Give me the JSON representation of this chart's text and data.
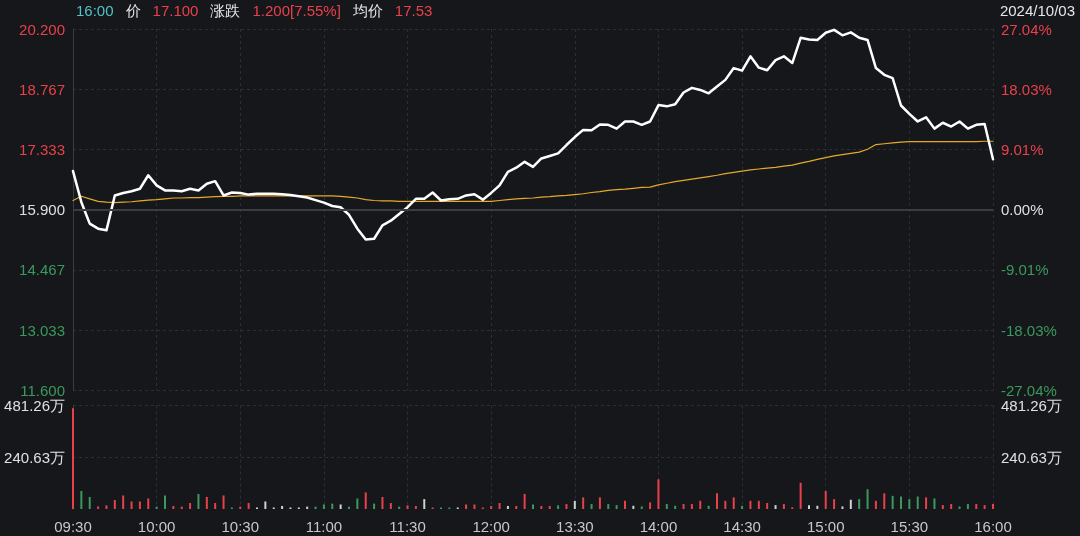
{
  "chart_data": [
    {
      "type": "line",
      "subtitle": "2024/10/03",
      "annotations": [
        "16:00",
        "价",
        "17.100",
        "涨跌",
        "1.200[7.55%]",
        "均价",
        "17.53"
      ],
      "categories": [
        null,
        null,
        null,
        null,
        null,
        null,
        null,
        null,
        null,
        null,
        null,
        null,
        null,
        null,
        null,
        null,
        null,
        null,
        null,
        null,
        null,
        null,
        null,
        null,
        null,
        null,
        null,
        null,
        null,
        null,
        null,
        null,
        null,
        null,
        null,
        null,
        null,
        null,
        null,
        null,
        null,
        null,
        null,
        null,
        null,
        null,
        null,
        null,
        null,
        null,
        null,
        null,
        null,
        null,
        null,
        null,
        null,
        null,
        null,
        null,
        null,
        null,
        null,
        null,
        null,
        null,
        null,
        null,
        null,
        null,
        null,
        null,
        null,
        null,
        null,
        null,
        null,
        null,
        null,
        null,
        null,
        null,
        null,
        null,
        null,
        null,
        null,
        null,
        null,
        null,
        null,
        null,
        null,
        null,
        null,
        null,
        null,
        null,
        null,
        null,
        null,
        null,
        null,
        null,
        null,
        null,
        null,
        null,
        null,
        null,
        null
      ],
      "ylim": [
        11.6,
        20.2
      ],
      "yticks": [
        {
          "value": 11.6,
          "label": "11.600"
        },
        {
          "value": 13.033,
          "label": "13.033"
        },
        {
          "value": 14.467,
          "label": "14.467"
        },
        {
          "value": 15.9,
          "label": "15.900"
        },
        {
          "value": 17.333,
          "label": "17.333"
        },
        {
          "value": 18.767,
          "label": "18.767"
        },
        {
          "value": 20.2,
          "label": "20.200"
        }
      ],
      "y2lim": [
        -27.04,
        27.04
      ],
      "y2ticks": [
        {
          "value": -27.04,
          "label": "-27.04%"
        },
        {
          "value": -18.03,
          "label": "-18.03%"
        },
        {
          "value": -9.01,
          "label": "-9.01%"
        },
        {
          "value": 0,
          "label": "0.00%"
        },
        {
          "value": 9.01,
          "label": "9.01%"
        },
        {
          "value": 18.03,
          "label": "18.03%"
        },
        {
          "value": 27.04,
          "label": "27.04%"
        }
      ],
      "ref_lines": [
        {
          "axis": "y",
          "value": 15.9,
          "color": "#3a3c42"
        }
      ],
      "grid": true,
      "tick_labels": "y",
      "marker": "none",
      "line_style": "solid",
      "series": [
        {
          "color": "#ffffff",
          "values": [
            16.82,
            16.08,
            15.57,
            15.45,
            15.41,
            16.24,
            16.3,
            16.34,
            16.4,
            16.72,
            16.48,
            16.36,
            16.36,
            16.34,
            16.4,
            16.36,
            16.52,
            16.58,
            16.24,
            16.31,
            16.3,
            16.26,
            16.28,
            16.28,
            16.28,
            16.27,
            16.25,
            16.22,
            16.19,
            16.13,
            16.07,
            15.99,
            15.96,
            15.78,
            15.45,
            15.19,
            15.21,
            15.53,
            15.64,
            15.8,
            15.96,
            16.16,
            16.16,
            16.31,
            16.12,
            16.15,
            16.16,
            16.24,
            16.27,
            16.14,
            16.3,
            16.48,
            16.8,
            16.9,
            17.04,
            16.92,
            17.12,
            17.18,
            17.24,
            17.44,
            17.63,
            17.8,
            17.79,
            17.93,
            17.92,
            17.83,
            18.0,
            18.0,
            17.92,
            18.0,
            18.39,
            18.36,
            18.41,
            18.69,
            18.8,
            18.75,
            18.67,
            18.83,
            18.99,
            19.27,
            19.21,
            19.55,
            19.28,
            19.22,
            19.46,
            19.55,
            19.39,
            19.99,
            19.95,
            19.94,
            20.11,
            20.18,
            20.05,
            20.12,
            19.99,
            19.94,
            19.27,
            19.11,
            19.03,
            18.38,
            18.18,
            18.0,
            18.1,
            17.83,
            17.97,
            17.88,
            18.0,
            17.83,
            17.92,
            17.94,
            17.1
          ]
        },
        {
          "color": "#e6a92a",
          "values": [
            16.12,
            16.22,
            16.16,
            16.1,
            16.08,
            16.07,
            16.08,
            16.09,
            16.11,
            16.13,
            16.14,
            16.16,
            16.18,
            16.18,
            16.19,
            16.19,
            16.2,
            16.21,
            16.22,
            16.22,
            16.23,
            16.23,
            16.23,
            16.23,
            16.23,
            16.23,
            16.23,
            16.23,
            16.23,
            16.23,
            16.23,
            16.23,
            16.22,
            16.2,
            16.18,
            16.14,
            16.12,
            16.11,
            16.11,
            16.1,
            16.1,
            16.1,
            16.1,
            16.1,
            16.1,
            16.1,
            16.1,
            16.1,
            16.1,
            16.1,
            16.1,
            16.12,
            16.14,
            16.16,
            16.17,
            16.18,
            16.2,
            16.21,
            16.23,
            16.24,
            16.26,
            16.28,
            16.31,
            16.33,
            16.36,
            16.38,
            16.39,
            16.41,
            16.43,
            16.44,
            16.49,
            16.53,
            16.57,
            16.6,
            16.63,
            16.66,
            16.69,
            16.72,
            16.76,
            16.79,
            16.82,
            16.85,
            16.87,
            16.89,
            16.91,
            16.94,
            16.96,
            17.01,
            17.05,
            17.1,
            17.14,
            17.18,
            17.21,
            17.24,
            17.27,
            17.34,
            17.45,
            17.47,
            17.49,
            17.51,
            17.52,
            17.52,
            17.52,
            17.52,
            17.52,
            17.52,
            17.52,
            17.52,
            17.52,
            17.53,
            17.53
          ]
        }
      ]
    },
    {
      "type": "bar",
      "grid": true,
      "categories": [
        "09:30",
        null,
        null,
        null,
        null,
        null,
        null,
        null,
        null,
        null,
        "10:00",
        null,
        null,
        null,
        null,
        null,
        null,
        null,
        null,
        null,
        "10:30",
        null,
        null,
        null,
        null,
        null,
        null,
        null,
        null,
        null,
        "11:00",
        null,
        null,
        null,
        null,
        null,
        null,
        null,
        null,
        null,
        "11:30",
        null,
        null,
        null,
        null,
        null,
        null,
        null,
        null,
        null,
        "12:00",
        null,
        null,
        null,
        null,
        null,
        null,
        null,
        null,
        null,
        "13:30",
        null,
        null,
        null,
        null,
        null,
        null,
        null,
        null,
        null,
        "14:00",
        null,
        null,
        null,
        null,
        null,
        null,
        null,
        null,
        null,
        "14:30",
        null,
        null,
        null,
        null,
        null,
        null,
        null,
        null,
        null,
        "15:00",
        null,
        null,
        null,
        null,
        null,
        null,
        null,
        null,
        null,
        "15:30",
        null,
        null,
        null,
        null,
        null,
        null,
        null,
        null,
        null,
        "16:00"
      ],
      "ylim": [
        0,
        481.26
      ],
      "yticks": [
        {
          "value": 240.63,
          "label": "240.63万"
        },
        {
          "value": 481.26,
          "label": "481.26万"
        }
      ],
      "y2lim": [
        0,
        481.26
      ],
      "y2ticks": [
        {
          "value": 240.63,
          "label": "240.63万"
        },
        {
          "value": 481.26,
          "label": "481.26万"
        }
      ],
      "values": [
        468,
        84,
        56,
        12,
        17,
        42,
        63,
        35,
        35,
        49,
        11,
        63,
        14,
        11,
        28,
        70,
        56,
        28,
        63,
        7,
        11,
        28,
        7,
        35,
        7,
        14,
        7,
        7,
        11,
        11,
        21,
        25,
        21,
        11,
        49,
        77,
        25,
        56,
        28,
        11,
        17,
        14,
        46,
        7,
        7,
        7,
        7,
        21,
        21,
        7,
        14,
        28,
        14,
        14,
        70,
        21,
        14,
        14,
        17,
        23,
        38,
        54,
        23,
        54,
        23,
        18,
        38,
        15,
        12,
        31,
        138,
        23,
        15,
        23,
        23,
        38,
        15,
        73,
        38,
        54,
        15,
        38,
        38,
        28,
        18,
        23,
        8,
        122,
        18,
        15,
        84,
        46,
        12,
        43,
        46,
        92,
        38,
        73,
        61,
        58,
        46,
        58,
        54,
        49,
        18,
        23,
        12,
        23,
        23,
        18,
        23
      ],
      "colors": [
        "#e8414a",
        "#3a9a5c",
        "#3a9a5c",
        "#e8414a",
        "#e8414a",
        "#e8414a",
        "#e8414a",
        "#e8414a",
        "#e8414a",
        "#e8414a",
        "#3a9a5c",
        "#3a9a5c",
        "#e8414a",
        "#e8414a",
        "#e8414a",
        "#3a9a5c",
        "#e8414a",
        "#e8414a",
        "#e8414a",
        "#3a9a5c",
        "#e8414a",
        "#e8414a",
        "#d0d0d0",
        "#d0d0d0",
        "#d0d0d0",
        "#d0d0d0",
        "#d0d0d0",
        "#d0d0d0",
        "#d0d0d0",
        "#3a9a5c",
        "#3a9a5c",
        "#3a9a5c",
        "#d0d0d0",
        "#3a9a5c",
        "#3a9a5c",
        "#e8414a",
        "#3a9a5c",
        "#e8414a",
        "#e8414a",
        "#3a9a5c",
        "#e8414a",
        "#e8414a",
        "#d0d0d0",
        "#e8414a",
        "#3a9a5c",
        "#3a9a5c",
        "#d0d0d0",
        "#e8414a",
        "#e8414a",
        "#e8414a",
        "#e8414a",
        "#e8414a",
        "#d0d0d0",
        "#e8414a",
        "#e8414a",
        "#3a9a5c",
        "#e8414a",
        "#e8414a",
        "#3a9a5c",
        "#e8414a",
        "#d0d0d0",
        "#e8414a",
        "#3a9a5c",
        "#e8414a",
        "#3a9a5c",
        "#3a9a5c",
        "#e8414a",
        "#d0d0d0",
        "#3a9a5c",
        "#e8414a",
        "#e8414a",
        "#3a9a5c",
        "#3a9a5c",
        "#e8414a",
        "#e8414a",
        "#e8414a",
        "#3a9a5c",
        "#e8414a",
        "#e8414a",
        "#e8414a",
        "#3a9a5c",
        "#e8414a",
        "#e8414a",
        "#e8414a",
        "#d0d0d0",
        "#e8414a",
        "#e8414a",
        "#e8414a",
        "#d0d0d0",
        "#d0d0d0",
        "#e8414a",
        "#e8414a",
        "#d0d0d0",
        "#d0d0d0",
        "#3a9a5c",
        "#3a9a5c",
        "#e8414a",
        "#e8414a",
        "#3a9a5c",
        "#3a9a5c",
        "#3a9a5c",
        "#3a9a5c",
        "#e8414a",
        "#3a9a5c",
        "#e8414a",
        "#e8414a",
        "#3a9a5c",
        "#3a9a5c",
        "#e8414a",
        "#e8414a",
        "#e8414a"
      ]
    }
  ]
}
